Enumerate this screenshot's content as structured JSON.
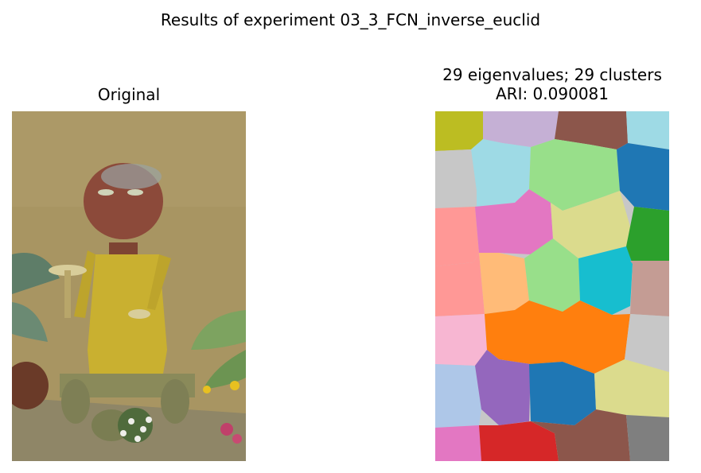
{
  "figure": {
    "suptitle": "Results of experiment 03_3_FCN_inverse_euclid"
  },
  "left_panel": {
    "title": "Original"
  },
  "right_panel": {
    "title_line1": "29 eigenvalues; 29 clusters",
    "title_line2": "ARI: 0.090081"
  }
}
